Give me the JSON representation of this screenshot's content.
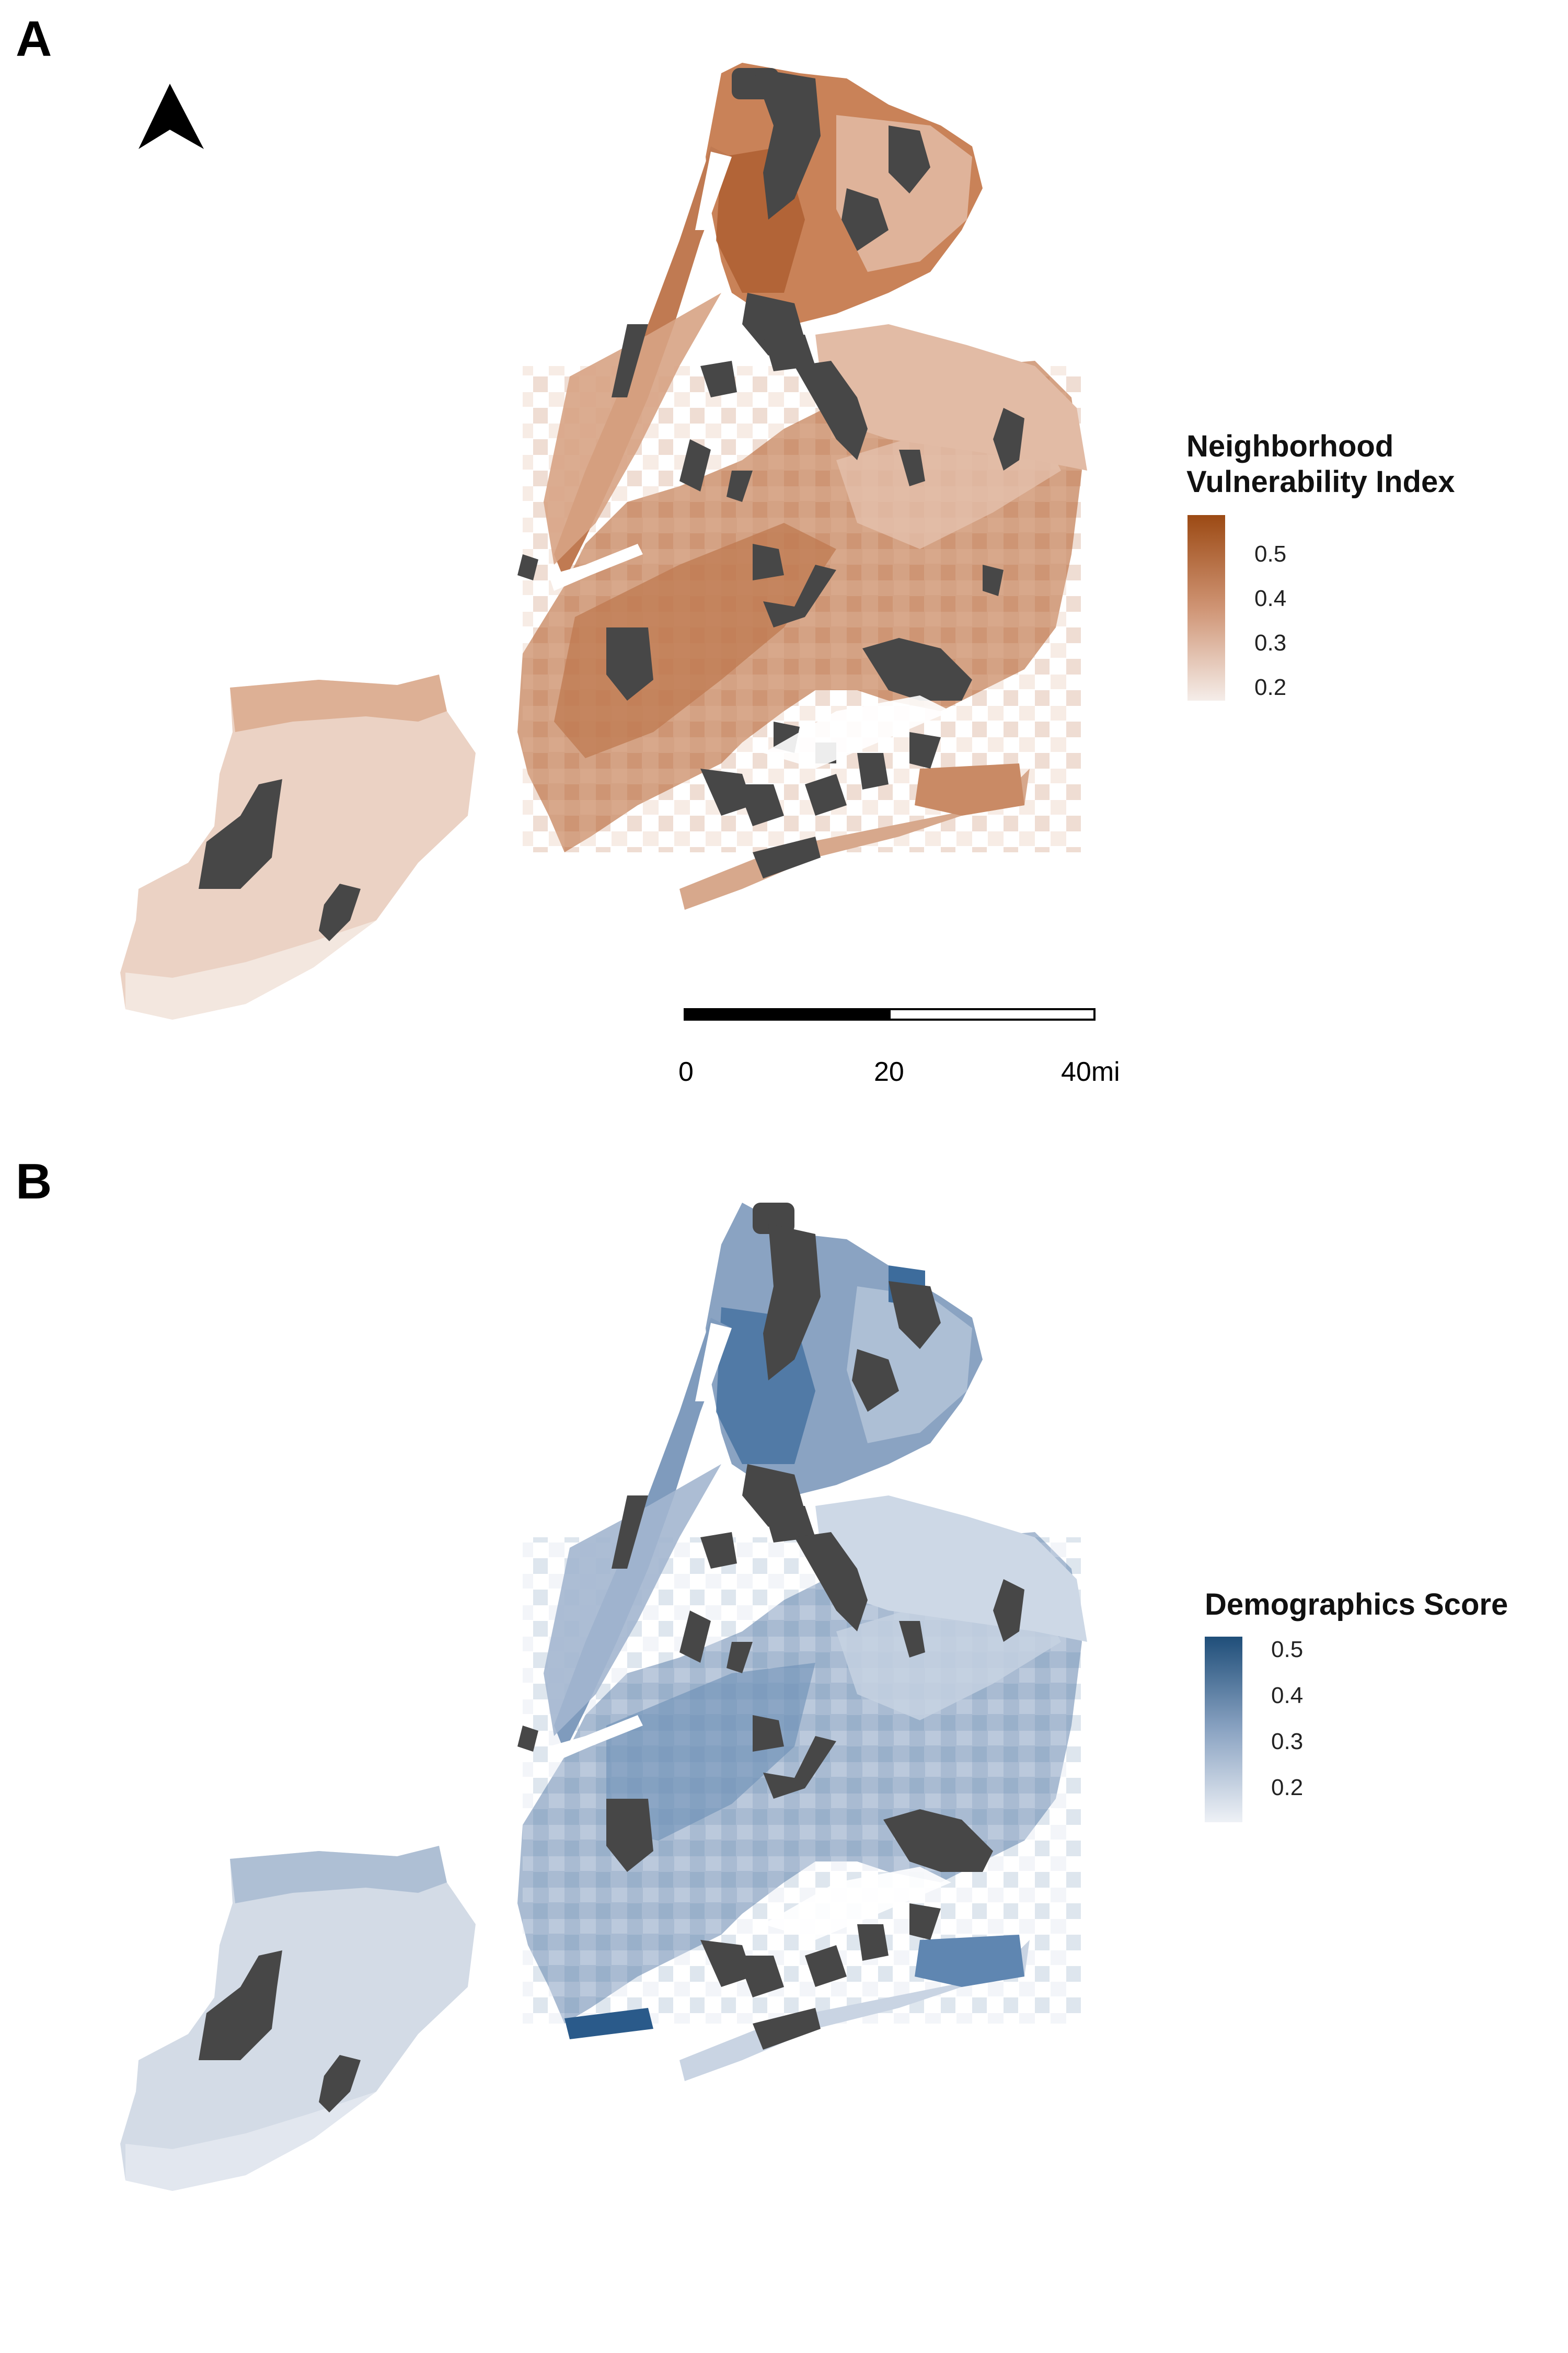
{
  "panel_a": {
    "letter": "A",
    "legend_title_line1": "Neighborhood",
    "legend_title_line2": "Vulnerability Index",
    "legend_ticks": [
      "0.5",
      "0.4",
      "0.3",
      "0.2"
    ],
    "legend_color_high": "#9c4a14",
    "legend_color_low": "#f5ede9",
    "north_arrow": "north-arrow-icon",
    "scale_bar": {
      "labels": [
        "0",
        "20",
        "40mi"
      ]
    }
  },
  "panel_b": {
    "letter": "B",
    "legend_title": "Demographics Score",
    "legend_ticks": [
      "0.5",
      "0.4",
      "0.3",
      "0.2"
    ],
    "legend_color_high": "#1f4e79",
    "legend_color_low": "#eef1f6"
  },
  "parks_color": "#474747"
}
